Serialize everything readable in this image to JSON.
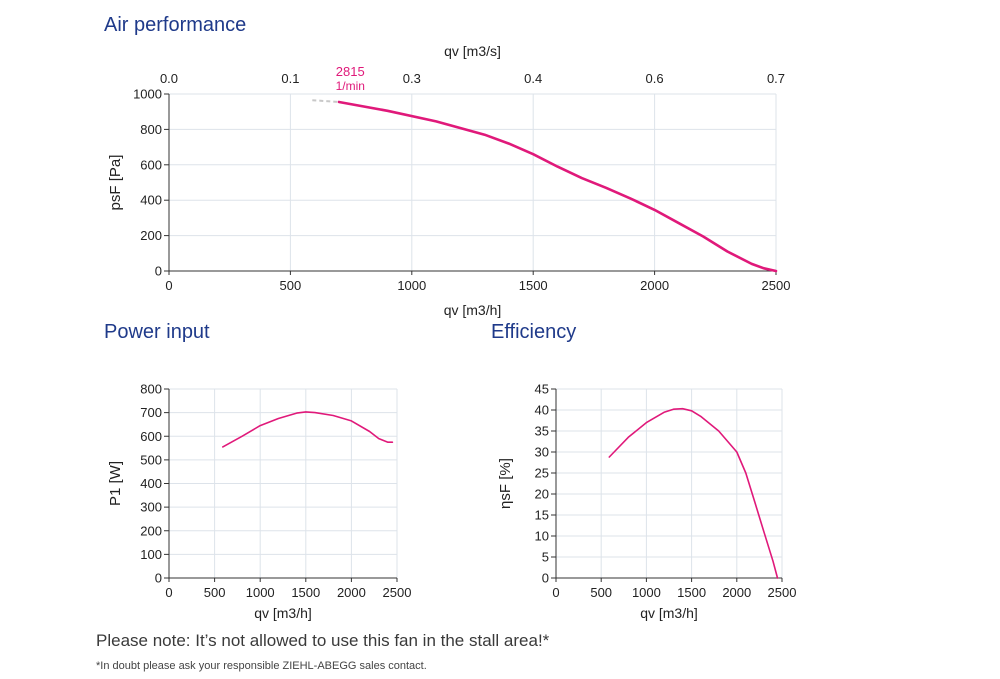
{
  "headings": {
    "air_performance": "Air performance",
    "power_input": "Power input",
    "efficiency": "Efficiency"
  },
  "note": "Please note: It’s not allowed to use this fan in the stall area!*",
  "footnote": "*In doubt please ask your responsible ZIEHL-ABEGG sales contact.",
  "colors": {
    "curve": "#e0197a",
    "grid": "#dde3ea",
    "axis": "#333333",
    "heading": "#1f3a8a",
    "stall": "#c8c8c8"
  },
  "chart_data": [
    {
      "id": "air",
      "type": "line",
      "xlabel": "qv [m3/h]",
      "ylabel": "psF [Pa]",
      "x2label": "qv [m3/s]",
      "xlim": [
        0,
        2500
      ],
      "ylim": [
        0,
        1000
      ],
      "xticks": [
        0,
        500,
        1000,
        1500,
        2000,
        2500
      ],
      "yticks": [
        0,
        200,
        400,
        600,
        800,
        1000
      ],
      "x2ticks": [
        {
          "at": 0,
          "label": "0.0"
        },
        {
          "at": 500,
          "label": "0.1"
        },
        {
          "at": 1000,
          "label": "0.3"
        },
        {
          "at": 1500,
          "label": "0.4"
        },
        {
          "at": 2000,
          "label": "0.6"
        },
        {
          "at": 2500,
          "label": "0.7"
        }
      ],
      "grid": true,
      "speed_label": [
        "2815",
        "1/min"
      ],
      "stall_segment": {
        "x": [
          590,
          700
        ],
        "y": [
          965,
          955
        ]
      },
      "series": [
        {
          "x": [
            700,
            900,
            1100,
            1300,
            1400,
            1500,
            1600,
            1700,
            1800,
            1900,
            2000,
            2100,
            2200,
            2300,
            2400,
            2450,
            2500
          ],
          "y": [
            955,
            905,
            845,
            770,
            720,
            660,
            590,
            525,
            470,
            410,
            345,
            270,
            195,
            110,
            40,
            15,
            0
          ]
        }
      ]
    },
    {
      "id": "power",
      "type": "line",
      "xlabel": "qv [m3/h]",
      "ylabel": "P1 [W]",
      "xlim": [
        0,
        2500
      ],
      "ylim": [
        0,
        800
      ],
      "xticks": [
        0,
        500,
        1000,
        1500,
        2000,
        2500
      ],
      "yticks": [
        0,
        100,
        200,
        300,
        400,
        500,
        600,
        700,
        800
      ],
      "grid": true,
      "series": [
        {
          "x": [
            590,
            800,
            1000,
            1200,
            1400,
            1500,
            1600,
            1800,
            2000,
            2200,
            2300,
            2400,
            2450
          ],
          "y": [
            555,
            600,
            645,
            675,
            698,
            703,
            700,
            688,
            665,
            620,
            590,
            575,
            575
          ]
        }
      ]
    },
    {
      "id": "efficiency",
      "type": "line",
      "xlabel": "qv [m3/h]",
      "ylabel": "ηsF [%]",
      "xlim": [
        0,
        2500
      ],
      "ylim": [
        0,
        45
      ],
      "xticks": [
        0,
        500,
        1000,
        1500,
        2000,
        2500
      ],
      "yticks": [
        0,
        5,
        10,
        15,
        20,
        25,
        30,
        35,
        40,
        45
      ],
      "grid": true,
      "series": [
        {
          "x": [
            590,
            800,
            1000,
            1200,
            1300,
            1400,
            1500,
            1600,
            1800,
            2000,
            2100,
            2200,
            2300,
            2400,
            2450
          ],
          "y": [
            28.8,
            33.5,
            37,
            39.5,
            40.2,
            40.3,
            39.8,
            38.5,
            35,
            30,
            25,
            18,
            11,
            4,
            0
          ]
        }
      ]
    }
  ]
}
